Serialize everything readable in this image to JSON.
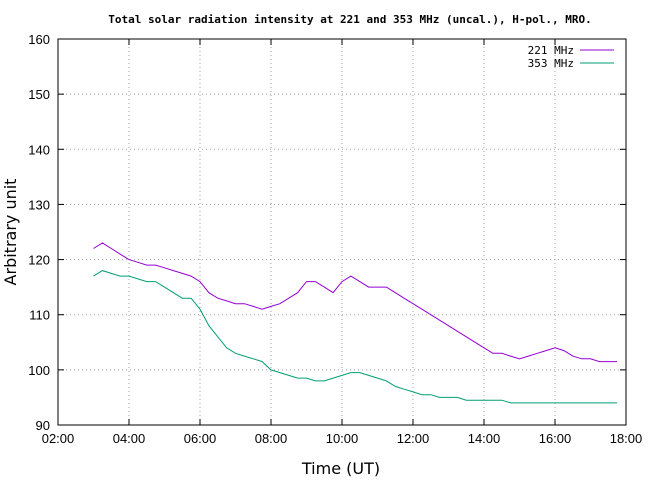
{
  "chart_data": {
    "type": "line",
    "title": "Total solar radiation intensity at 221 and 353 MHz (uncal.), H-pol., MRO.",
    "xlabel": "Time (UT)",
    "ylabel": "Arbitrary unit",
    "xlim": [
      "02:00",
      "18:00"
    ],
    "ylim": [
      90,
      160
    ],
    "x_ticks": [
      "02:00",
      "04:00",
      "06:00",
      "08:00",
      "10:00",
      "12:00",
      "14:00",
      "16:00",
      "18:00"
    ],
    "y_ticks": [
      90,
      100,
      110,
      120,
      130,
      140,
      150,
      160
    ],
    "grid": true,
    "legend_position": "top-right",
    "series": [
      {
        "name": "221 MHz",
        "color": "#9400d3",
        "x": [
          "03:00",
          "03:15",
          "03:30",
          "03:45",
          "04:00",
          "04:15",
          "04:30",
          "04:45",
          "05:00",
          "05:15",
          "05:30",
          "05:45",
          "06:00",
          "06:15",
          "06:30",
          "06:45",
          "07:00",
          "07:15",
          "07:30",
          "07:45",
          "08:00",
          "08:15",
          "08:30",
          "08:45",
          "09:00",
          "09:15",
          "09:30",
          "09:45",
          "10:00",
          "10:15",
          "10:30",
          "10:45",
          "11:00",
          "11:15",
          "11:30",
          "11:45",
          "12:00",
          "12:15",
          "12:30",
          "12:45",
          "13:00",
          "13:15",
          "13:30",
          "13:45",
          "14:00",
          "14:15",
          "14:30",
          "14:45",
          "15:00",
          "15:15",
          "15:30",
          "15:45",
          "16:00",
          "16:15",
          "16:30",
          "16:45",
          "17:00",
          "17:15",
          "17:30",
          "17:45"
        ],
        "y": [
          122,
          123,
          122,
          121,
          120,
          119.5,
          119,
          119,
          118.5,
          118,
          117.5,
          117,
          116,
          114,
          113,
          112.5,
          112,
          112,
          111.5,
          111,
          111.5,
          112,
          113,
          114,
          116,
          116,
          115,
          114,
          116,
          117,
          116,
          115,
          115,
          115,
          114,
          113,
          112,
          111,
          110,
          109,
          108,
          107,
          106,
          105,
          104,
          103,
          103,
          102.5,
          102,
          102.5,
          103,
          103.5,
          104,
          103.5,
          102.5,
          102,
          102,
          101.5,
          101.5,
          101.5
        ]
      },
      {
        "name": "353 MHz",
        "color": "#009e73",
        "x": [
          "03:00",
          "03:15",
          "03:30",
          "03:45",
          "04:00",
          "04:15",
          "04:30",
          "04:45",
          "05:00",
          "05:15",
          "05:30",
          "05:45",
          "06:00",
          "06:15",
          "06:30",
          "06:45",
          "07:00",
          "07:15",
          "07:30",
          "07:45",
          "08:00",
          "08:15",
          "08:30",
          "08:45",
          "09:00",
          "09:15",
          "09:30",
          "09:45",
          "10:00",
          "10:15",
          "10:30",
          "10:45",
          "11:00",
          "11:15",
          "11:30",
          "11:45",
          "12:00",
          "12:15",
          "12:30",
          "12:45",
          "13:00",
          "13:15",
          "13:30",
          "13:45",
          "14:00",
          "14:15",
          "14:30",
          "14:45",
          "15:00",
          "15:15",
          "15:30",
          "15:45",
          "16:00",
          "16:15",
          "16:30",
          "16:45",
          "17:00",
          "17:15",
          "17:30",
          "17:45"
        ],
        "y": [
          117,
          118,
          117.5,
          117,
          117,
          116.5,
          116,
          116,
          115,
          114,
          113,
          113,
          111,
          108,
          106,
          104,
          103,
          102.5,
          102,
          101.5,
          100,
          99.5,
          99,
          98.5,
          98.5,
          98,
          98,
          98.5,
          99,
          99.5,
          99.5,
          99,
          98.5,
          98,
          97,
          96.5,
          96,
          95.5,
          95.5,
          95,
          95,
          95,
          94.5,
          94.5,
          94.5,
          94.5,
          94.5,
          94,
          94,
          94,
          94,
          94,
          94,
          94,
          94,
          94,
          94,
          94,
          94,
          94
        ]
      }
    ]
  }
}
